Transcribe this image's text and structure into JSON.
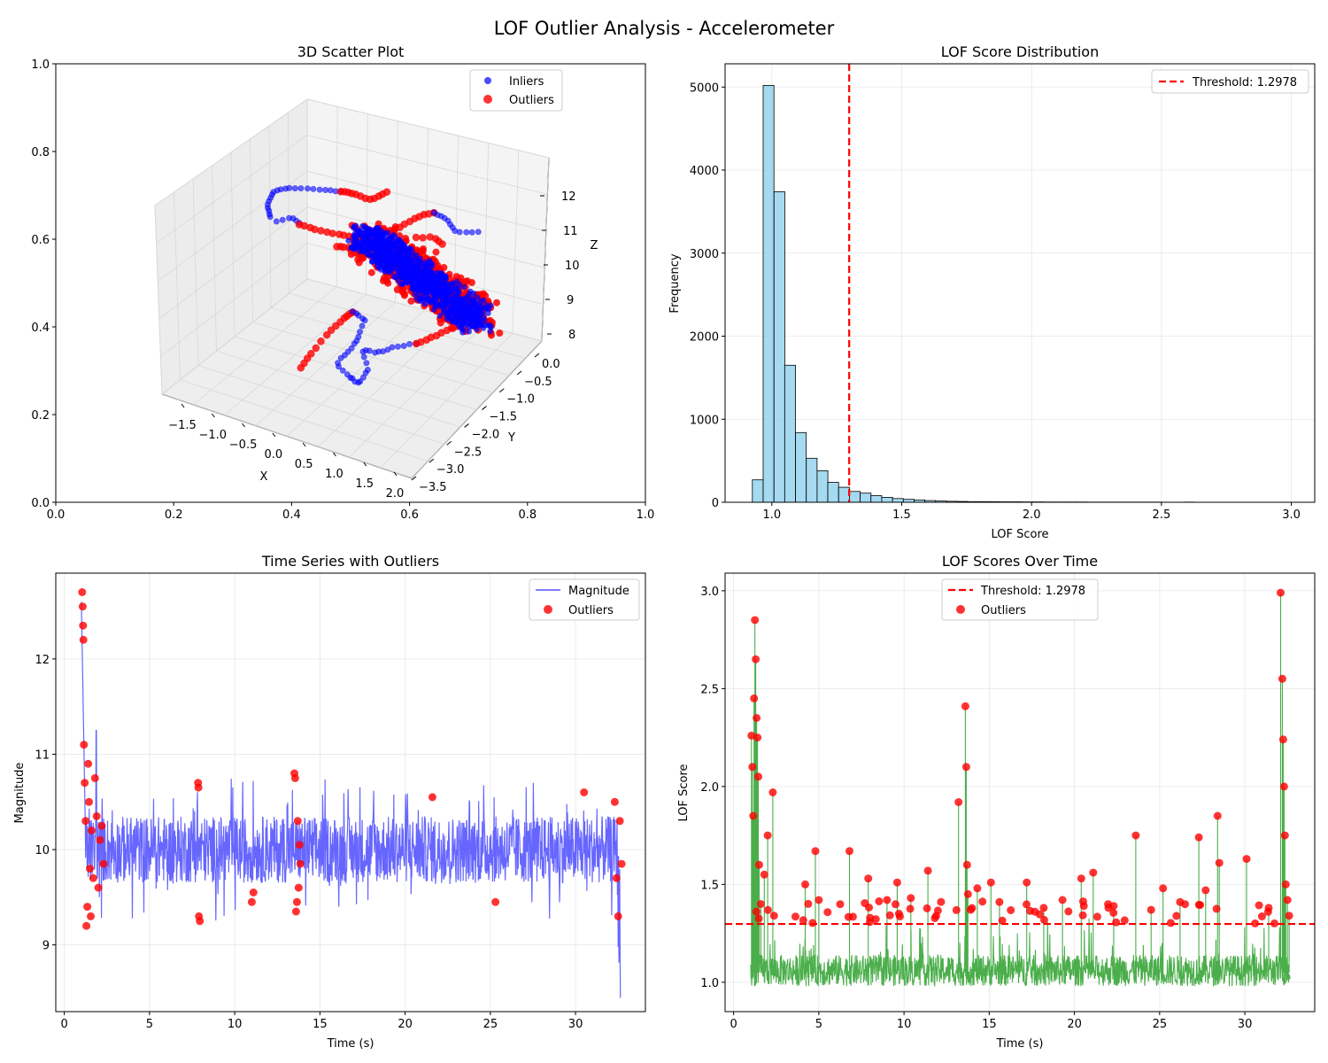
{
  "figure": {
    "title": "LOF Outlier Analysis - Accelerometer"
  },
  "colors": {
    "inlier": "#0000ff",
    "outlier": "#ff0000",
    "histogram": "#87ceeb",
    "lof_line": "#2ca02c",
    "threshold": "#ff0000",
    "magnitude": "#5555ff"
  },
  "chart_data": [
    {
      "id": "scatter3d",
      "type": "scatter",
      "title": "3D Scatter Plot",
      "xlabel": "X",
      "ylabel": "Y",
      "zlabel": "Z",
      "frame_xlim": [
        0,
        1
      ],
      "frame_ylim": [
        0,
        1
      ],
      "frame_ticks": [
        "0.0",
        "0.2",
        "0.4",
        "0.6",
        "0.8",
        "1.0"
      ],
      "x_ticks": [
        "−1.5",
        "−1.0",
        "−0.5",
        "0.0",
        "0.5",
        "1.0",
        "1.5",
        "2.0"
      ],
      "y_ticks": [
        "0.0",
        "−0.5",
        "−1.0",
        "−1.5",
        "−2.0",
        "−2.5",
        "−3.0",
        "−3.5"
      ],
      "z_ticks": [
        "8",
        "9",
        "10",
        "11",
        "12"
      ],
      "legend": [
        "Inliers",
        "Outliers"
      ]
    },
    {
      "id": "histogram",
      "type": "bar",
      "title": "LOF Score Distribution",
      "xlabel": "LOF Score",
      "ylabel": "Frequency",
      "xlim": [
        0.82,
        3.09
      ],
      "ylim": [
        0,
        5280
      ],
      "xticks": [
        "1.0",
        "1.5",
        "2.0",
        "2.5",
        "3.0"
      ],
      "yticks": [
        "0",
        "1000",
        "2000",
        "3000",
        "4000",
        "5000"
      ],
      "bin_start": 0.925,
      "bin_width": 0.0415,
      "values": [
        270,
        5020,
        3740,
        1650,
        840,
        530,
        380,
        240,
        180,
        130,
        110,
        80,
        60,
        45,
        35,
        28,
        20,
        15,
        12,
        10,
        8,
        7,
        6,
        5,
        5,
        4,
        4,
        3,
        3,
        3,
        3,
        2,
        2,
        2,
        2,
        2,
        2,
        2,
        1,
        1,
        2,
        1,
        1,
        1,
        1,
        1,
        1,
        1,
        1,
        1
      ],
      "threshold": 1.2978,
      "legend": [
        "Threshold: 1.2978"
      ]
    },
    {
      "id": "timeseries",
      "type": "line",
      "title": "Time Series with Outliers",
      "xlabel": "Time (s)",
      "ylabel": "Magnitude",
      "xlim": [
        -0.5,
        34.1
      ],
      "ylim": [
        8.3,
        12.9
      ],
      "xticks": [
        "0",
        "5",
        "10",
        "15",
        "20",
        "25",
        "30"
      ],
      "yticks": [
        "9",
        "10",
        "11",
        "12"
      ],
      "legend": [
        "Magnitude",
        "Outliers"
      ],
      "series": [
        {
          "name": "Outliers",
          "x": [
            1.05,
            1.08,
            1.1,
            1.12,
            1.15,
            1.2,
            1.25,
            1.3,
            1.35,
            1.4,
            1.45,
            1.5,
            1.55,
            1.6,
            1.7,
            1.8,
            1.9,
            2.0,
            2.1,
            2.2,
            2.3,
            7.85,
            7.87,
            7.9,
            7.95,
            11.0,
            11.1,
            13.5,
            13.55,
            13.6,
            13.65,
            13.7,
            13.75,
            13.8,
            13.85,
            21.6,
            25.3,
            30.5,
            32.3,
            32.4,
            32.5,
            32.6,
            32.7
          ],
          "y": [
            12.7,
            12.55,
            12.35,
            12.2,
            11.1,
            10.7,
            10.3,
            9.2,
            9.4,
            10.9,
            10.5,
            9.8,
            9.3,
            10.2,
            9.7,
            10.75,
            10.35,
            9.6,
            10.1,
            10.25,
            9.85,
            10.7,
            10.65,
            9.3,
            9.25,
            9.45,
            9.55,
            10.8,
            10.75,
            9.35,
            9.45,
            10.3,
            9.6,
            10.05,
            9.85,
            10.55,
            9.45,
            10.6,
            10.5,
            9.7,
            9.3,
            10.3,
            9.85
          ]
        }
      ]
    },
    {
      "id": "lof_over_time",
      "type": "line",
      "title": "LOF Scores Over Time",
      "xlabel": "Time (s)",
      "ylabel": "LOF Score",
      "xlim": [
        -0.5,
        34.1
      ],
      "ylim": [
        0.85,
        3.09
      ],
      "xticks": [
        "0",
        "5",
        "10",
        "15",
        "20",
        "25",
        "30"
      ],
      "yticks": [
        "1.0",
        "1.5",
        "2.0",
        "2.5",
        "3.0"
      ],
      "threshold": 1.2978,
      "legend": [
        "Threshold: 1.2978",
        "Outliers"
      ],
      "series": [
        {
          "name": "Outliers",
          "x": [
            1.05,
            1.1,
            1.15,
            1.2,
            1.25,
            1.3,
            1.35,
            1.4,
            1.45,
            1.5,
            1.6,
            1.8,
            2.0,
            2.3,
            4.2,
            4.8,
            5.0,
            6.8,
            7.9,
            9.0,
            9.6,
            10.4,
            11.4,
            13.2,
            13.6,
            13.65,
            13.7,
            13.75,
            14.3,
            15.1,
            15.6,
            17.2,
            18.2,
            19.3,
            20.4,
            21.1,
            22.3,
            23.6,
            24.5,
            25.2,
            26.2,
            27.3,
            27.7,
            28.4,
            28.5,
            30.1,
            31.4,
            32.1,
            32.2,
            32.25,
            32.3,
            32.35,
            32.4,
            32.5,
            32.6
          ],
          "y": [
            2.26,
            2.1,
            1.85,
            2.45,
            2.85,
            2.65,
            2.35,
            2.25,
            2.05,
            1.6,
            1.4,
            1.55,
            1.75,
            1.97,
            1.5,
            1.67,
            1.42,
            1.67,
            1.53,
            1.42,
            1.51,
            1.43,
            1.57,
            1.92,
            2.41,
            2.1,
            1.6,
            1.45,
            1.48,
            1.51,
            1.41,
            1.51,
            1.38,
            1.42,
            1.53,
            1.56,
            1.39,
            1.75,
            1.37,
            1.48,
            1.41,
            1.74,
            1.47,
            1.85,
            1.61,
            1.63,
            1.38,
            2.99,
            2.55,
            2.24,
            2.0,
            1.75,
            1.5,
            1.42,
            1.34
          ]
        }
      ]
    }
  ]
}
